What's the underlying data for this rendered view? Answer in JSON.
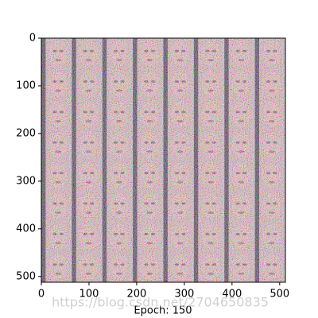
{
  "chart_data": {
    "type": "image",
    "xlabel": "Epoch: 150",
    "xlim": [
      0,
      512
    ],
    "ylim": [
      512,
      0
    ],
    "xticks": [
      0,
      100,
      200,
      300,
      400,
      500
    ],
    "yticks": [
      0,
      100,
      200,
      300,
      400,
      500
    ],
    "watermark": "https://blog.csdn.net/2704650835"
  }
}
